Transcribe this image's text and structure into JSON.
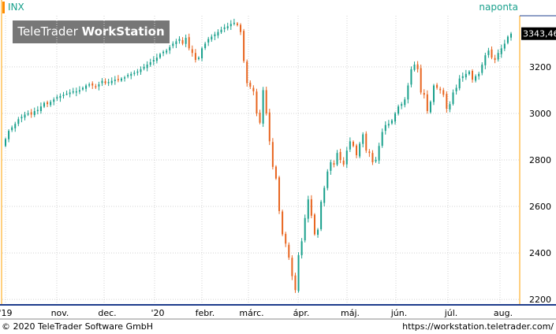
{
  "header": {
    "ticker": "INX",
    "period": "naponta",
    "brand_light": "TeleTrader ",
    "brand_bold": "WorkStation"
  },
  "footer": {
    "copyright": "© 2020 TeleTrader Software GmbH",
    "url": "https://workstation.teletrader.com/"
  },
  "colors": {
    "up": "#19a08c",
    "down": "#e8641e",
    "grid": "#d3d3d3",
    "axis_right": "#ffa000",
    "axis_bottom": "#1e3c8c",
    "last_price_bg": "#000000"
  },
  "chart_data": {
    "type": "candlestick",
    "last_price": "3343,46",
    "y_ticks": [
      2200,
      2400,
      2600,
      2800,
      3000,
      3200
    ],
    "ylim": [
      2180,
      3420
    ],
    "x_labels": [
      "'19",
      "nov.",
      "dec.",
      "'20",
      "febr.",
      "márc.",
      "ápr.",
      "máj.",
      "jún.",
      "júl.",
      "aug."
    ],
    "grid": true,
    "closes": [
      2890,
      2925,
      2940,
      2955,
      2975,
      2985,
      2995,
      3000,
      2995,
      3010,
      3015,
      3030,
      3045,
      3040,
      3050,
      3060,
      3070,
      3075,
      3080,
      3085,
      3090,
      3095,
      3095,
      3100,
      3110,
      3120,
      3125,
      3120,
      3115,
      3125,
      3140,
      3130,
      3135,
      3140,
      3145,
      3145,
      3150,
      3155,
      3165,
      3170,
      3175,
      3180,
      3190,
      3200,
      3210,
      3220,
      3230,
      3240,
      3255,
      3265,
      3270,
      3285,
      3300,
      3310,
      3320,
      3300,
      3325,
      3280,
      3260,
      3230,
      3240,
      3280,
      3300,
      3320,
      3330,
      3340,
      3350,
      3360,
      3370,
      3375,
      3385,
      3390,
      3380,
      3350,
      3225,
      3130,
      3115,
      3095,
      3000,
      2960,
      3100,
      3000,
      2880,
      2770,
      2720,
      2580,
      2480,
      2440,
      2380,
      2300,
      2240,
      2390,
      2450,
      2550,
      2630,
      2560,
      2480,
      2500,
      2620,
      2680,
      2750,
      2790,
      2780,
      2830,
      2800,
      2780,
      2840,
      2880,
      2860,
      2820,
      2870,
      2910,
      2840,
      2830,
      2790,
      2800,
      2860,
      2920,
      2950,
      2955,
      2970,
      3000,
      3030,
      3040,
      3060,
      3120,
      3190,
      3210,
      3190,
      3090,
      3080,
      3010,
      3050,
      3120,
      3110,
      3100,
      3080,
      3020,
      3040,
      3090,
      3110,
      3150,
      3160,
      3170,
      3180,
      3145,
      3160,
      3170,
      3210,
      3250,
      3270,
      3240,
      3230,
      3260,
      3280,
      3300,
      3330,
      3343
    ]
  }
}
